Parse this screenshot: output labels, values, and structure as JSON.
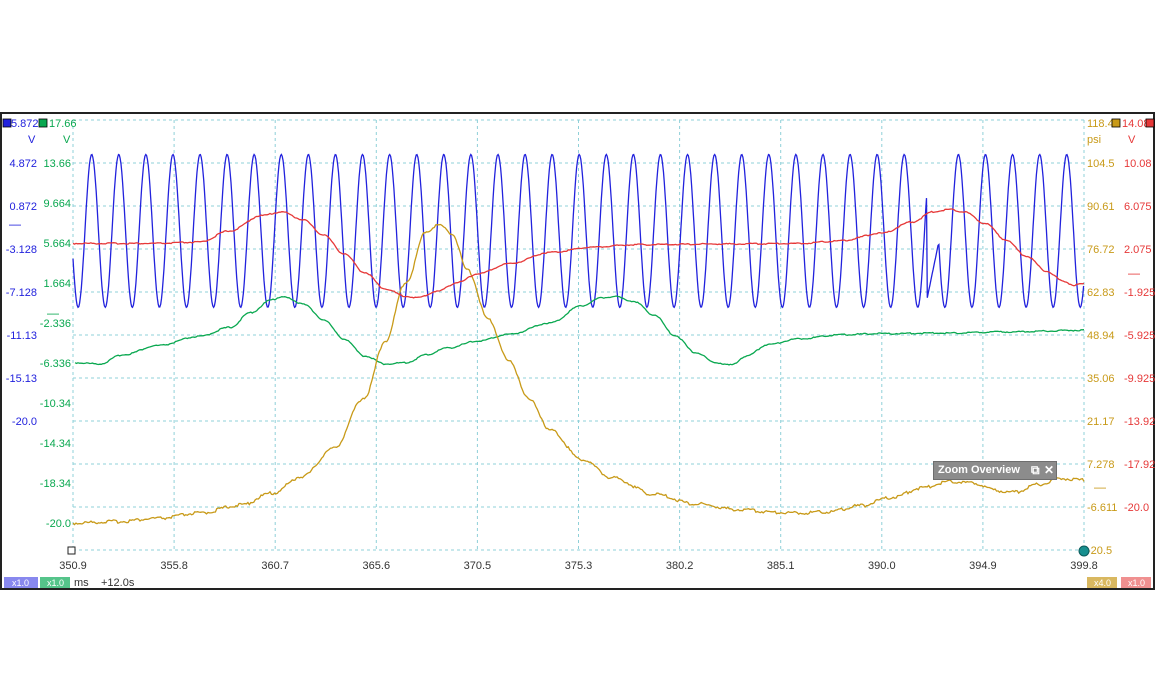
{
  "colors": {
    "chA": "#2222dd",
    "chB": "#0aa850",
    "chC": "#c89a18",
    "chD": "#e63838",
    "grid": "#8fd0d8",
    "frame": "#222222",
    "text": "#333333"
  },
  "channels": {
    "A": {
      "top": "5.872",
      "unit": "V",
      "ticks": [
        "4.872",
        "0.872",
        "-3.128",
        "-7.128",
        "-11.13",
        "-15.13",
        "-20.0"
      ],
      "marker": "—"
    },
    "B": {
      "top": "17.66",
      "unit": "V",
      "ticks": [
        "13.66",
        "9.664",
        "5.664",
        "1.664",
        "-2.336",
        "-6.336",
        "-10.34",
        "-14.34",
        "-18.34",
        "-20.0"
      ],
      "marker": "—"
    },
    "C": {
      "top": "118.4",
      "unit": "psi",
      "ticks": [
        "104.5",
        "90.61",
        "76.72",
        "62.83",
        "48.94",
        "35.06",
        "21.17",
        "7.278",
        "-6.611",
        "-20.5"
      ],
      "marker": "—"
    },
    "D": {
      "top": "14.08",
      "unit": "V",
      "ticks": [
        "10.08",
        "6.075",
        "2.075",
        "-1.925",
        "-5.925",
        "-9.925",
        "-13.92",
        "-17.92",
        "-20.0"
      ],
      "marker": "—"
    }
  },
  "chart_data": {
    "type": "line",
    "x_unit": "ms",
    "x_ticks": [
      "350.9",
      "355.8",
      "360.7",
      "365.6",
      "370.5",
      "375.3",
      "380.2",
      "385.1",
      "390.0",
      "394.9",
      "399.8"
    ],
    "xlim": [
      350.9,
      399.8
    ],
    "grid": true,
    "series": [
      {
        "channel": "A",
        "ylim": [
          -20.0,
          5.872
        ],
        "baseline": -0.8,
        "amplitude": 4.6,
        "period_ms": 1.31,
        "start_x": 351.15,
        "warp": [
          [
            392.0,
            0.0
          ],
          [
            393.0,
            0.5
          ],
          [
            394.0,
            0.0
          ]
        ],
        "peak_near": [
          [
            393.2,
            5.4
          ]
        ]
      },
      {
        "channel": "B",
        "ylim": [
          -20.0,
          17.66
        ],
        "points": [
          [
            351.0,
            -3.6
          ],
          [
            352.2,
            -3.7
          ],
          [
            353.3,
            -2.9
          ],
          [
            355.0,
            -2.1
          ],
          [
            357.0,
            -1.3
          ],
          [
            358.5,
            -0.5
          ],
          [
            359.5,
            0.8
          ],
          [
            360.5,
            1.9
          ],
          [
            361.0,
            2.2
          ],
          [
            362.0,
            1.6
          ],
          [
            363.0,
            0.2
          ],
          [
            364.0,
            -1.5
          ],
          [
            365.0,
            -3.0
          ],
          [
            366.0,
            -3.7
          ],
          [
            367.0,
            -3.6
          ],
          [
            368.0,
            -2.9
          ],
          [
            369.0,
            -2.3
          ],
          [
            370.5,
            -1.7
          ],
          [
            372.0,
            -1.1
          ],
          [
            374.0,
            -0.1
          ],
          [
            375.5,
            1.4
          ],
          [
            376.5,
            2.1
          ],
          [
            377.1,
            2.2
          ],
          [
            378.0,
            1.8
          ],
          [
            379.0,
            0.6
          ],
          [
            380.0,
            -1.2
          ],
          [
            381.0,
            -2.7
          ],
          [
            382.0,
            -3.6
          ],
          [
            382.7,
            -3.8
          ],
          [
            383.5,
            -3.0
          ],
          [
            384.5,
            -2.0
          ],
          [
            386.0,
            -1.5
          ],
          [
            388.0,
            -1.15
          ],
          [
            390.0,
            -1.05
          ],
          [
            393.0,
            -1.0
          ],
          [
            396.0,
            -0.9
          ],
          [
            399.8,
            -0.75
          ]
        ]
      },
      {
        "channel": "C",
        "ylim": [
          -20.5,
          118.4
        ],
        "points": [
          [
            350.9,
            -11.8
          ],
          [
            353.0,
            -11.3
          ],
          [
            355.0,
            -10.3
          ],
          [
            357.0,
            -8.6
          ],
          [
            359.0,
            -6.0
          ],
          [
            360.5,
            -2.2
          ],
          [
            362.0,
            3.3
          ],
          [
            363.5,
            12.3
          ],
          [
            365.0,
            28.8
          ],
          [
            366.0,
            47.0
          ],
          [
            367.0,
            66.0
          ],
          [
            368.0,
            82.5
          ],
          [
            368.6,
            84.5
          ],
          [
            369.2,
            82.0
          ],
          [
            370.0,
            69.7
          ],
          [
            371.0,
            53.8
          ],
          [
            372.0,
            40.4
          ],
          [
            373.0,
            27.9
          ],
          [
            374.0,
            18.2
          ],
          [
            375.5,
            8.8
          ],
          [
            377.0,
            2.8
          ],
          [
            379.0,
            -2.5
          ],
          [
            381.0,
            -5.6
          ],
          [
            383.0,
            -7.4
          ],
          [
            385.0,
            -8.3
          ],
          [
            386.0,
            -8.5
          ],
          [
            387.5,
            -8.1
          ],
          [
            389.0,
            -6.2
          ],
          [
            390.5,
            -3.5
          ],
          [
            392.0,
            -0.4
          ],
          [
            393.3,
            1.7
          ],
          [
            394.5,
            1.1
          ],
          [
            395.5,
            -1.3
          ],
          [
            396.5,
            -1.8
          ],
          [
            397.5,
            0.6
          ],
          [
            398.7,
            2.6
          ],
          [
            399.8,
            2.1
          ]
        ]
      },
      {
        "channel": "D",
        "ylim": [
          -20.0,
          14.08
        ],
        "points": [
          [
            350.9,
            4.3
          ],
          [
            355.0,
            4.3
          ],
          [
            357.0,
            4.4
          ],
          [
            358.5,
            5.3
          ],
          [
            360.0,
            6.5
          ],
          [
            361.0,
            6.8
          ],
          [
            362.0,
            6.2
          ],
          [
            363.0,
            5.0
          ],
          [
            364.0,
            3.5
          ],
          [
            365.0,
            2.0
          ],
          [
            366.0,
            0.7
          ],
          [
            367.0,
            0.1
          ],
          [
            367.6,
            0.0
          ],
          [
            368.5,
            0.5
          ],
          [
            369.5,
            1.2
          ],
          [
            370.5,
            1.9
          ],
          [
            372.0,
            2.7
          ],
          [
            374.0,
            3.6
          ],
          [
            376.0,
            4.0
          ],
          [
            378.0,
            4.2
          ],
          [
            382.0,
            4.25
          ],
          [
            386.0,
            4.3
          ],
          [
            388.0,
            4.5
          ],
          [
            390.0,
            5.1
          ],
          [
            391.5,
            6.0
          ],
          [
            392.5,
            6.8
          ],
          [
            393.3,
            7.0
          ],
          [
            394.0,
            6.8
          ],
          [
            395.0,
            5.9
          ],
          [
            396.0,
            4.6
          ],
          [
            397.0,
            3.3
          ],
          [
            398.0,
            2.1
          ],
          [
            398.8,
            1.3
          ],
          [
            399.3,
            1.0
          ],
          [
            399.8,
            1.1
          ]
        ]
      }
    ]
  },
  "footer": {
    "scale_a": "x1.0",
    "scale_b": "x1.0",
    "unit": "ms",
    "offset": "+12.0s",
    "scale_c": "x4.0",
    "scale_d": "x1.0"
  },
  "zoom_overview": {
    "title": "Zoom Overview",
    "restore_icon": "⧉",
    "close_icon": "✕"
  }
}
